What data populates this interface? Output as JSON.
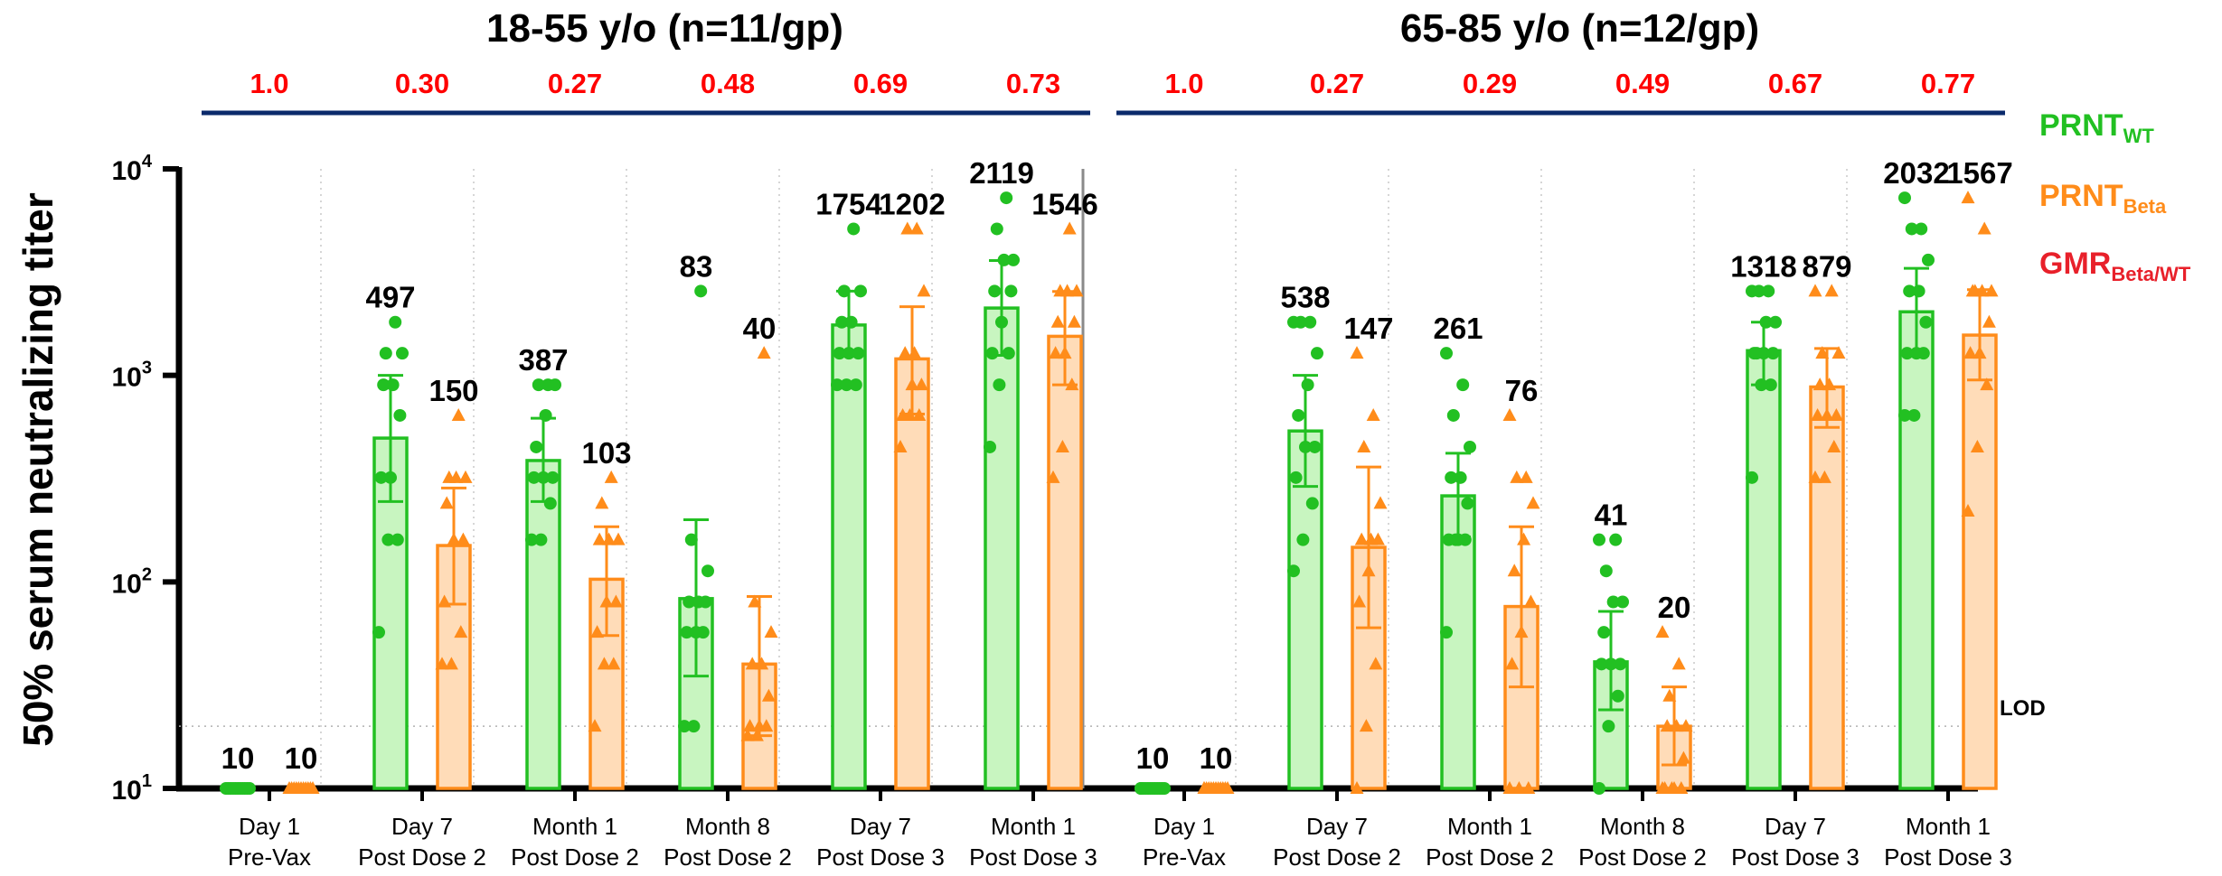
{
  "chart_data": {
    "type": "bar",
    "y_scale": "log",
    "ylim": [
      10,
      10000
    ],
    "ylabel": "50% serum neutralizing titer",
    "y_ticks": [
      {
        "base": "10",
        "exp": "1"
      },
      {
        "base": "10",
        "exp": "2"
      },
      {
        "base": "10",
        "exp": "3"
      },
      {
        "base": "10",
        "exp": "4"
      }
    ],
    "lod": {
      "label": "LOD",
      "value": 20
    },
    "legend": {
      "placement": "right",
      "entries": [
        {
          "main": "PRNT",
          "sub": "WT",
          "color": "#22c022"
        },
        {
          "main": "PRNT",
          "sub": "Beta",
          "color": "#ff8c1a"
        },
        {
          "main": "GMR",
          "sub": "Beta/WT",
          "color": "#e8202a"
        }
      ]
    },
    "colors": {
      "wt": "#22c022",
      "wt_fill": "#c8f5c0",
      "beta": "#ff8c1a",
      "beta_fill": "#ffdcb8",
      "gmr": "#ff0000",
      "group_line": "#0a2a6b"
    },
    "panels": [
      {
        "title": "18-55 y/o (n=11/gp)",
        "timepoints": [
          {
            "label_line1": "Day 1",
            "label_line2": "Pre-Vax",
            "gmr": "1.0",
            "wt": {
              "value": 10,
              "label": "10",
              "err": [
                10,
                10
              ],
              "points": [
                10,
                10,
                10,
                10,
                10,
                10,
                10,
                10,
                10,
                10,
                10
              ]
            },
            "beta": {
              "value": 10,
              "label": "10",
              "err": [
                10,
                10
              ],
              "points": [
                10,
                10,
                10,
                10,
                10,
                10,
                10,
                10,
                10,
                10,
                10
              ]
            }
          },
          {
            "label_line1": "Day 7",
            "label_line2": "Post Dose 2",
            "gmr": "0.30",
            "wt": {
              "value": 497,
              "label": "497",
              "err": [
                245,
                1000
              ],
              "points": [
                57,
                160,
                160,
                320,
                320,
                640,
                900,
                900,
                1280,
                1280,
                1810
              ]
            },
            "beta": {
              "value": 150,
              "label": "150",
              "err": [
                78,
                285
              ],
              "points": [
                40,
                40,
                57,
                80,
                160,
                160,
                240,
                320,
                320,
                320,
                640
              ]
            }
          },
          {
            "label_line1": "Month 1",
            "label_line2": "Post Dose 2",
            "gmr": "0.27",
            "wt": {
              "value": 387,
              "label": "387",
              "err": [
                245,
                620
              ],
              "points": [
                160,
                160,
                240,
                320,
                320,
                320,
                450,
                640,
                900,
                900,
                900
              ]
            },
            "beta": {
              "value": 103,
              "label": "103",
              "err": [
                55,
                185
              ],
              "points": [
                20,
                40,
                40,
                57,
                80,
                80,
                160,
                160,
                160,
                240,
                320
              ]
            }
          },
          {
            "label_line1": "Month 8",
            "label_line2": "Post Dose 2",
            "gmr": "0.48",
            "wt": {
              "value": 83,
              "label": "83",
              "err": [
                35,
                200
              ],
              "points": [
                20,
                20,
                57,
                57,
                57,
                80,
                80,
                80,
                113,
                160,
                2560
              ]
            },
            "beta": {
              "value": 40,
              "label": "40",
              "err": [
                18,
                85
              ],
              "points": [
                18,
                18,
                20,
                20,
                20,
                28,
                40,
                40,
                57,
                80,
                1280
              ]
            }
          },
          {
            "label_line1": "Day 7",
            "label_line2": "Post Dose 3",
            "gmr": "0.69",
            "wt": {
              "value": 1754,
              "label": "1754",
              "err": [
                1250,
                2560
              ],
              "points": [
                900,
                900,
                900,
                1280,
                1280,
                1280,
                1810,
                1810,
                2560,
                2560,
                5120
              ]
            },
            "beta": {
              "value": 1202,
              "label": "1202",
              "err": [
                650,
                2150
              ],
              "points": [
                450,
                640,
                640,
                640,
                900,
                900,
                1280,
                1280,
                2560,
                5120,
                5120
              ]
            }
          },
          {
            "label_line1": "Month 1",
            "label_line2": "Post Dose 3",
            "gmr": "0.73",
            "wt": {
              "value": 2119,
              "label": "2119",
              "err": [
                1250,
                3600
              ],
              "points": [
                450,
                900,
                1280,
                1280,
                1810,
                2560,
                2560,
                3620,
                3620,
                5120,
                7240
              ]
            },
            "beta": {
              "value": 1546,
              "label": "1546",
              "err": [
                900,
                2550
              ],
              "points": [
                320,
                450,
                900,
                1280,
                1280,
                1810,
                1810,
                2560,
                2560,
                2560,
                5120
              ]
            }
          }
        ]
      },
      {
        "title": "65-85 y/o (n=12/gp)",
        "timepoints": [
          {
            "label_line1": "Day 1",
            "label_line2": "Pre-Vax",
            "gmr": "1.0",
            "wt": {
              "value": 10,
              "label": "10",
              "err": [
                10,
                10
              ],
              "points": [
                10,
                10,
                10,
                10,
                10,
                10,
                10,
                10,
                10,
                10,
                10,
                10
              ]
            },
            "beta": {
              "value": 10,
              "label": "10",
              "err": [
                10,
                10
              ],
              "points": [
                10,
                10,
                10,
                10,
                10,
                10,
                10,
                10,
                10,
                10,
                10,
                10
              ]
            }
          },
          {
            "label_line1": "Day 7",
            "label_line2": "Post Dose 2",
            "gmr": "0.27",
            "wt": {
              "value": 538,
              "label": "538",
              "err": [
                290,
                1000
              ],
              "points": [
                113,
                160,
                240,
                320,
                450,
                450,
                640,
                900,
                1280,
                1810,
                1810,
                1810
              ]
            },
            "beta": {
              "value": 147,
              "label": "147",
              "err": [
                60,
                360
              ],
              "points": [
                10,
                20,
                40,
                80,
                113,
                160,
                160,
                160,
                240,
                450,
                640,
                1280
              ]
            }
          },
          {
            "label_line1": "Month 1",
            "label_line2": "Post Dose 2",
            "gmr": "0.29",
            "wt": {
              "value": 261,
              "label": "261",
              "err": [
                165,
                420
              ],
              "points": [
                57,
                160,
                160,
                160,
                160,
                240,
                320,
                320,
                450,
                640,
                900,
                1280
              ]
            },
            "beta": {
              "value": 76,
              "label": "76",
              "err": [
                31,
                185
              ],
              "points": [
                10,
                10,
                10,
                40,
                57,
                80,
                113,
                160,
                240,
                320,
                320,
                640
              ]
            }
          },
          {
            "label_line1": "Month 8",
            "label_line2": "Post Dose 2",
            "gmr": "0.49",
            "wt": {
              "value": 41,
              "label": "41",
              "err": [
                24,
                72
              ],
              "points": [
                10,
                20,
                28,
                40,
                40,
                40,
                57,
                80,
                80,
                113,
                160,
                160
              ]
            },
            "beta": {
              "value": 20,
              "label": "20",
              "err": [
                13,
                31
              ],
              "points": [
                10,
                10,
                10,
                10,
                10,
                14,
                20,
                20,
                20,
                28,
                40,
                57
              ]
            }
          },
          {
            "label_line1": "Day 7",
            "label_line2": "Post Dose 3",
            "gmr": "0.67",
            "wt": {
              "value": 1318,
              "label": "1318",
              "err": [
                900,
                1810
              ],
              "points": [
                320,
                900,
                900,
                1280,
                1280,
                1280,
                1280,
                1810,
                1810,
                2560,
                2560,
                2560
              ]
            },
            "beta": {
              "value": 879,
              "label": "879",
              "err": [
                560,
                1350
              ],
              "points": [
                320,
                320,
                450,
                640,
                640,
                640,
                900,
                900,
                1280,
                1280,
                2560,
                2560
              ]
            }
          },
          {
            "label_line1": "Month 1",
            "label_line2": "Post Dose 3",
            "gmr": "0.77",
            "wt": {
              "value": 2032,
              "label": "2032",
              "err": [
                1250,
                3300
              ],
              "points": [
                640,
                640,
                1280,
                1280,
                1280,
                1810,
                2560,
                2560,
                3620,
                5120,
                5120,
                7240
              ]
            },
            "beta": {
              "value": 1567,
              "label": "1567",
              "err": [
                950,
                2600
              ],
              "points": [
                220,
                450,
                900,
                1280,
                1280,
                1810,
                2560,
                2560,
                2560,
                2560,
                5120,
                7240
              ]
            }
          }
        ]
      }
    ]
  }
}
